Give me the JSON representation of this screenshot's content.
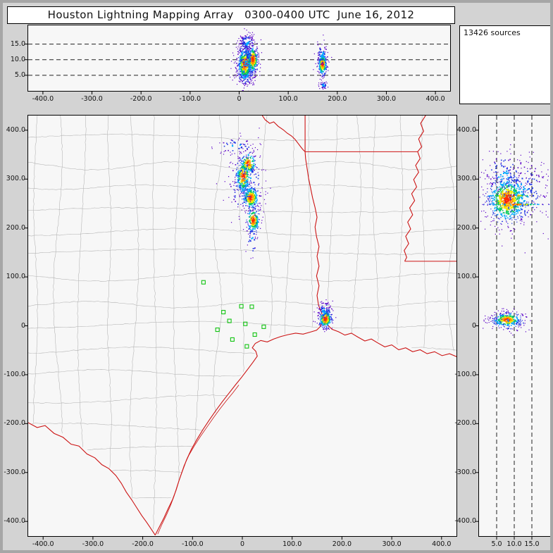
{
  "window": {
    "title": "Houston Lightning Mapping Array   0300-0400 UTC  June 16, 2012",
    "sources_count_label": "13426 sources"
  },
  "colors": {
    "background": "#d3d3d3",
    "panel_background": "#f7f7f7",
    "panel_border": "#000000",
    "county_line": "#b2b2b2",
    "state_border": "#cc1414",
    "station_marker": "#12c412",
    "density_scale": [
      "#5a00c8",
      "#2136e6",
      "#00a8ff",
      "#00c85a",
      "#f0e800",
      "#ff9100",
      "#ff2a00"
    ]
  },
  "chart_data": [
    {
      "id": "alt_vs_ew",
      "type": "scatter",
      "description": "altitude (km) vs east-west distance (km)",
      "seed": 11,
      "x_range": [
        -430,
        430
      ],
      "y_range": [
        0,
        21
      ],
      "x_ticks": {
        "values": [
          -400,
          -300,
          -200,
          -100,
          0,
          100,
          200,
          300,
          400
        ],
        "labels": [
          "-400.0",
          "-300.0",
          "-200.0",
          "-100.0",
          "0",
          "100.0",
          "200.0",
          "300.0",
          "400.0"
        ]
      },
      "y_ticks": {
        "values": [
          5,
          10,
          15
        ],
        "labels": [
          "5.0",
          "10.0",
          "15.0"
        ]
      },
      "dashed_y_gridlines": [
        5,
        10,
        15
      ],
      "clusters": [
        {
          "cx": 12,
          "cy": 8.5,
          "sx": 8,
          "sy": 3.1,
          "n": 650
        },
        {
          "cx": 28,
          "cy": 10,
          "sx": 6,
          "sy": 2.5,
          "n": 300
        },
        {
          "cx": 16,
          "cy": 15.5,
          "sx": 9,
          "sy": 1.6,
          "n": 90,
          "sparse": true
        },
        {
          "cx": 14,
          "cy": 8,
          "sx": 14,
          "sy": 4.2,
          "n": 110,
          "sparse": true
        },
        {
          "cx": 170,
          "cy": 8.5,
          "sx": 4.5,
          "sy": 1.9,
          "n": 260
        },
        {
          "cx": 170,
          "cy": 11.5,
          "sx": 7,
          "sy": 2.2,
          "n": 50,
          "sparse": true
        },
        {
          "cx": 172,
          "cy": 1.8,
          "sx": 4,
          "sy": 0.7,
          "n": 32,
          "sparse": true
        }
      ]
    },
    {
      "id": "plan_view",
      "type": "scatter",
      "description": "plan view map, north-south vs east-west distance (km)",
      "seed": 22,
      "x_range": [
        -430,
        430
      ],
      "y_range": [
        -430,
        430
      ],
      "x_ticks": {
        "values": [
          -400,
          -300,
          -200,
          -100,
          0,
          100,
          200,
          300,
          400
        ],
        "labels": [
          "-400.0",
          "-300.0",
          "-200.0",
          "-100.0",
          "0",
          "100.0",
          "200.0",
          "300.0",
          "400.0"
        ]
      },
      "y_ticks": {
        "values": [
          400,
          300,
          200,
          100,
          0,
          -100,
          -200,
          -300,
          -400
        ],
        "labels": [
          "400.0",
          "300.0",
          "200.0",
          "100.0",
          "0",
          "-100.0",
          "-200.0",
          "-300.0",
          "-400.0"
        ]
      },
      "clusters": [
        {
          "cx": 2,
          "cy": 306,
          "sx": 8,
          "sy": 20,
          "n": 300
        },
        {
          "cx": 12,
          "cy": 332,
          "sx": 9,
          "sy": 13,
          "n": 130
        },
        {
          "cx": 17,
          "cy": 262,
          "sx": 9,
          "sy": 13,
          "n": 280
        },
        {
          "cx": 22,
          "cy": 216,
          "sx": 7,
          "sy": 15,
          "n": 190
        },
        {
          "cx": 8,
          "cy": 290,
          "sx": 22,
          "sy": 48,
          "n": 110,
          "sparse": true
        },
        {
          "cx": -12,
          "cy": 368,
          "sx": 22,
          "sy": 10,
          "n": 45,
          "sparse": true
        },
        {
          "cx": 20,
          "cy": 178,
          "sx": 6,
          "sy": 22,
          "n": 25,
          "sparse": true
        },
        {
          "cx": 167,
          "cy": 14,
          "sx": 7,
          "sy": 10,
          "n": 300
        },
        {
          "cx": 165,
          "cy": 30,
          "sx": 9,
          "sy": 12,
          "n": 55,
          "sparse": true
        }
      ],
      "stations": [
        [
          -78,
          89
        ],
        [
          -38,
          28
        ],
        [
          -2,
          40
        ],
        [
          19,
          39
        ],
        [
          -26,
          10
        ],
        [
          6,
          4
        ],
        [
          43,
          -2
        ],
        [
          -50,
          -8
        ],
        [
          -20,
          -28
        ],
        [
          9,
          -42
        ],
        [
          25,
          -18
        ]
      ],
      "borders": {
        "rio_grande": [
          [
            -430,
            -198
          ],
          [
            -412,
            -208
          ],
          [
            -396,
            -204
          ],
          [
            -378,
            -220
          ],
          [
            -360,
            -228
          ],
          [
            -344,
            -242
          ],
          [
            -328,
            -246
          ],
          [
            -312,
            -262
          ],
          [
            -296,
            -270
          ],
          [
            -282,
            -284
          ],
          [
            -268,
            -292
          ],
          [
            -254,
            -306
          ],
          [
            -243,
            -322
          ],
          [
            -233,
            -340
          ],
          [
            -222,
            -356
          ],
          [
            -212,
            -372
          ],
          [
            -202,
            -388
          ],
          [
            -192,
            -402
          ],
          [
            -184,
            -414
          ],
          [
            -175,
            -428
          ]
        ],
        "coast": [
          [
            -175,
            -428
          ],
          [
            -166,
            -410
          ],
          [
            -157,
            -392
          ],
          [
            -149,
            -374
          ],
          [
            -140,
            -355
          ],
          [
            -133,
            -336
          ],
          [
            -127,
            -316
          ],
          [
            -120,
            -296
          ],
          [
            -112,
            -274
          ],
          [
            -102,
            -252
          ],
          [
            -91,
            -232
          ],
          [
            -79,
            -212
          ],
          [
            -66,
            -192
          ],
          [
            -53,
            -173
          ],
          [
            -40,
            -155
          ],
          [
            -27,
            -138
          ],
          [
            -14,
            -121
          ],
          [
            -2,
            -106
          ],
          [
            10,
            -90
          ],
          [
            21,
            -75
          ],
          [
            30,
            -62
          ],
          [
            27,
            -52
          ],
          [
            20,
            -45
          ],
          [
            26,
            -36
          ],
          [
            37,
            -30
          ],
          [
            50,
            -33
          ],
          [
            63,
            -27
          ],
          [
            77,
            -22
          ],
          [
            92,
            -18
          ],
          [
            107,
            -15
          ],
          [
            122,
            -17
          ],
          [
            136,
            -13
          ],
          [
            149,
            -9
          ],
          [
            156,
            -2
          ],
          [
            160,
            6
          ],
          [
            166,
            10
          ],
          [
            171,
            2
          ],
          [
            180,
            -7
          ],
          [
            193,
            -12
          ],
          [
            206,
            -19
          ],
          [
            219,
            -15
          ],
          [
            232,
            -23
          ],
          [
            246,
            -31
          ],
          [
            259,
            -27
          ],
          [
            272,
            -35
          ],
          [
            286,
            -43
          ],
          [
            300,
            -39
          ],
          [
            314,
            -49
          ],
          [
            328,
            -45
          ],
          [
            342,
            -53
          ],
          [
            357,
            -49
          ],
          [
            371,
            -57
          ],
          [
            386,
            -53
          ],
          [
            401,
            -61
          ],
          [
            416,
            -57
          ],
          [
            430,
            -63
          ]
        ],
        "barrier_islands": [
          [
            -170,
            -426
          ],
          [
            -161,
            -405
          ],
          [
            -152,
            -386
          ],
          [
            -144,
            -367
          ],
          [
            -137,
            -348
          ],
          [
            -131,
            -328
          ],
          [
            -124,
            -307
          ],
          [
            -117,
            -286
          ],
          [
            -107,
            -264
          ],
          [
            -96,
            -245
          ],
          [
            -84,
            -226
          ],
          [
            -71,
            -207
          ],
          [
            -58,
            -188
          ],
          [
            -45,
            -170
          ],
          [
            -32,
            -153
          ],
          [
            -19,
            -137
          ],
          [
            -7,
            -121
          ]
        ],
        "sabine_tx_la": [
          [
            166,
            10
          ],
          [
            160,
            24
          ],
          [
            153,
            42
          ],
          [
            150,
            62
          ],
          [
            154,
            82
          ],
          [
            149,
            102
          ],
          [
            154,
            122
          ],
          [
            150,
            142
          ],
          [
            154,
            162
          ],
          [
            149,
            182
          ],
          [
            146,
            202
          ],
          [
            150,
            222
          ],
          [
            146,
            242
          ],
          [
            141,
            262
          ],
          [
            137,
            282
          ],
          [
            133,
            302
          ],
          [
            130,
            322
          ],
          [
            127,
            342
          ],
          [
            126,
            356
          ]
        ],
        "red_river_tx_ok": [
          [
            40,
            430
          ],
          [
            46,
            421
          ],
          [
            55,
            414
          ],
          [
            63,
            417
          ],
          [
            72,
            408
          ],
          [
            82,
            401
          ],
          [
            90,
            394
          ],
          [
            99,
            388
          ],
          [
            106,
            381
          ],
          [
            112,
            373
          ],
          [
            118,
            365
          ],
          [
            122,
            360
          ],
          [
            126,
            356
          ]
        ],
        "tx_ar_vertical": [
          [
            126,
            356
          ],
          [
            126,
            430
          ]
        ],
        "ar_la_horizontal": [
          [
            126,
            356
          ],
          [
            352,
            356
          ]
        ],
        "mississippi_river": [
          [
            368,
            430
          ],
          [
            358,
            414
          ],
          [
            364,
            398
          ],
          [
            354,
            382
          ],
          [
            360,
            366
          ],
          [
            352,
            356
          ],
          [
            357,
            342
          ],
          [
            348,
            328
          ],
          [
            354,
            314
          ],
          [
            344,
            299
          ],
          [
            350,
            284
          ],
          [
            340,
            270
          ],
          [
            346,
            256
          ],
          [
            336,
            241
          ],
          [
            342,
            227
          ],
          [
            332,
            212
          ],
          [
            338,
            198
          ],
          [
            328,
            183
          ],
          [
            334,
            168
          ],
          [
            325,
            154
          ],
          [
            330,
            140
          ],
          [
            326,
            132
          ]
        ],
        "la_ms_31n": [
          [
            326,
            132
          ],
          [
            430,
            132
          ]
        ],
        "land_clip": [
          [
            -175,
            -428
          ],
          [
            -150,
            -385
          ],
          [
            -120,
            -300
          ],
          [
            -90,
            -235
          ],
          [
            -60,
            -190
          ],
          [
            -30,
            -145
          ],
          [
            0,
            -104
          ],
          [
            30,
            -56
          ],
          [
            60,
            -27
          ],
          [
            100,
            -17
          ],
          [
            150,
            -6
          ],
          [
            166,
            8
          ],
          [
            180,
            -8
          ],
          [
            240,
            -28
          ],
          [
            300,
            -40
          ],
          [
            360,
            -50
          ],
          [
            430,
            -60
          ]
        ]
      }
    },
    {
      "id": "alt_vs_ns",
      "type": "scatter",
      "description": "north-south distance (km) vs altitude (km)",
      "seed": 33,
      "x_range": [
        0,
        21
      ],
      "y_range": [
        -430,
        430
      ],
      "x_ticks": {
        "values": [
          5,
          10,
          15
        ],
        "labels": [
          "5.0",
          "10.0",
          "15.0"
        ]
      },
      "y_ticks": {
        "values": [
          400,
          300,
          200,
          100,
          0,
          -100,
          -200,
          -300,
          -400
        ],
        "labels": [
          "400.0",
          "300.0",
          "200.0",
          "100.0",
          "0",
          "-100.0",
          "-200.0",
          "-300.0",
          "-400.0"
        ]
      },
      "dashed_x_gridlines": [
        5,
        10,
        15
      ],
      "clusters": [
        {
          "cx": 8,
          "cy": 258,
          "sx": 3.0,
          "sy": 26,
          "n": 700
        },
        {
          "cx": 12,
          "cy": 272,
          "sx": 4.5,
          "sy": 42,
          "n": 170,
          "sparse": true
        },
        {
          "cx": 7,
          "cy": 310,
          "sx": 3.5,
          "sy": 25,
          "n": 90,
          "sparse": true
        },
        {
          "cx": 10,
          "cy": 248,
          "sx": 5,
          "sy": 1.0,
          "n": 70
        },
        {
          "cx": 9,
          "cy": 266,
          "sx": 4.5,
          "sy": 1.0,
          "n": 60
        },
        {
          "cx": 8,
          "cy": 12,
          "sx": 2.3,
          "sy": 8,
          "n": 280
        },
        {
          "cx": 9,
          "cy": 8,
          "sx": 3.5,
          "sy": 14,
          "n": 45,
          "sparse": true
        }
      ]
    }
  ]
}
